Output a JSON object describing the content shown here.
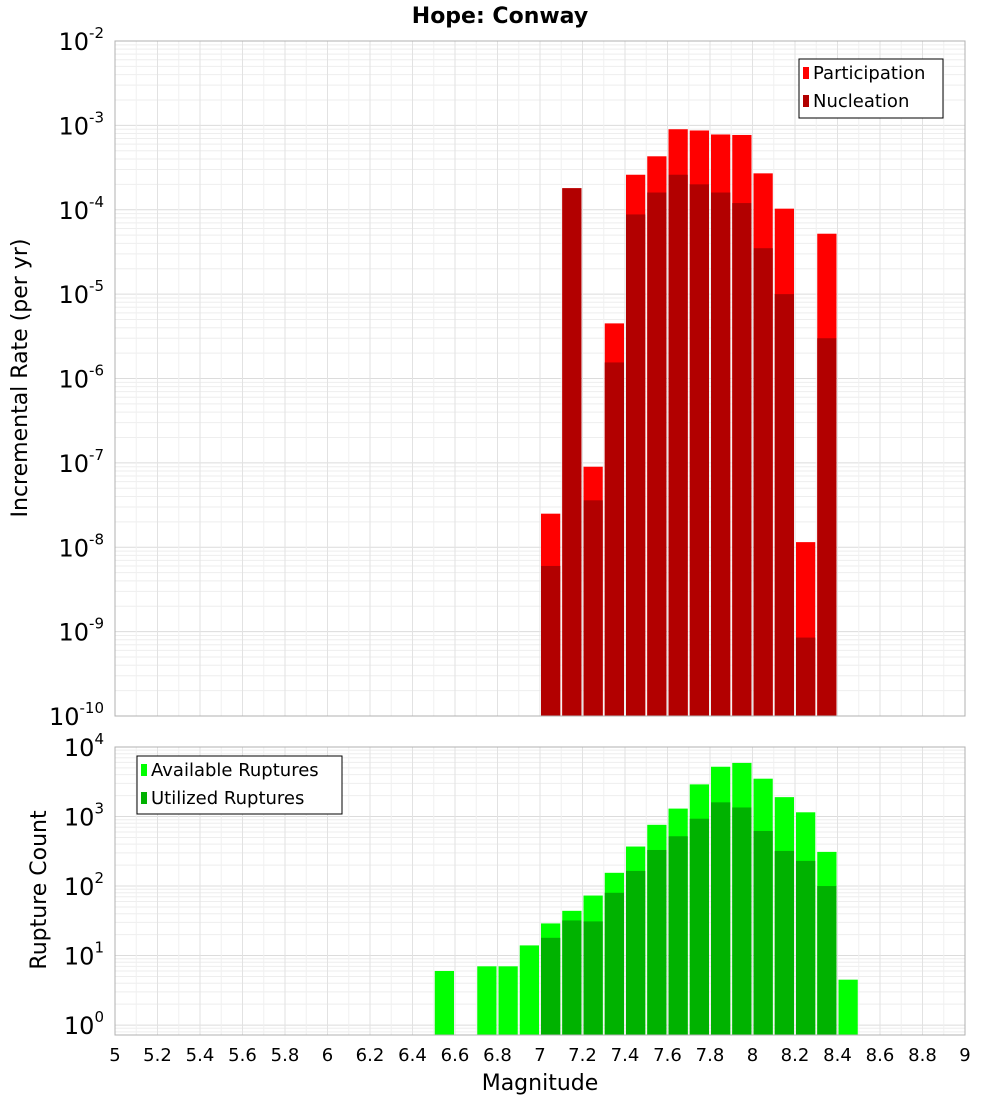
{
  "title": "Hope: Conway",
  "chart_data": [
    {
      "type": "bar",
      "ylabel": "Incremental Rate (per yr)",
      "yscale": "log",
      "ylim": [
        1e-10,
        0.01
      ],
      "xlim": [
        5,
        9
      ],
      "bar_width": 0.1,
      "ytick_exponents": [
        "-10",
        "-9",
        "-8",
        "-7",
        "-6",
        "-5",
        "-4",
        "-3",
        "-2"
      ],
      "legend": {
        "position": "top-right",
        "entries": [
          "Participation",
          "Nucleation"
        ]
      },
      "series": [
        {
          "name": "Participation",
          "color": "#ff0000",
          "x": [
            7.05,
            7.15,
            7.25,
            7.35,
            7.45,
            7.55,
            7.65,
            7.75,
            7.85,
            7.95,
            8.05,
            8.15,
            8.25,
            8.35
          ],
          "values": [
            2.5e-08,
            0.00018,
            9e-08,
            4.5e-06,
            0.00026,
            0.00043,
            0.0009,
            0.00087,
            0.00078,
            0.00077,
            0.00027,
            0.000103,
            1.15e-08,
            5.2e-05
          ]
        },
        {
          "name": "Nucleation",
          "color": "#b20000",
          "x": [
            7.05,
            7.15,
            7.25,
            7.35,
            7.45,
            7.55,
            7.65,
            7.75,
            7.85,
            7.95,
            8.05,
            8.15,
            8.25,
            8.35
          ],
          "values": [
            6e-09,
            0.00018,
            3.6e-08,
            1.55e-06,
            8.8e-05,
            0.00016,
            0.00026,
            0.0002,
            0.00016,
            0.00012,
            3.5e-05,
            1e-05,
            8.5e-10,
            3e-06
          ]
        }
      ]
    },
    {
      "type": "bar",
      "xlabel": "Magnitude",
      "ylabel": "Rupture Count",
      "yscale": "log",
      "ylim": [
        0.72,
        10000
      ],
      "xlim": [
        5,
        9
      ],
      "bar_width": 0.1,
      "xticks": [
        "5",
        "5.2",
        "5.4",
        "5.6",
        "5.8",
        "6",
        "6.2",
        "6.4",
        "6.6",
        "6.8",
        "7",
        "7.2",
        "7.4",
        "7.6",
        "7.8",
        "8",
        "8.2",
        "8.4",
        "8.6",
        "8.8",
        "9"
      ],
      "ytick_exponents": [
        "0",
        "1",
        "2",
        "3",
        "4"
      ],
      "legend": {
        "position": "top-left",
        "entries": [
          "Available Ruptures",
          "Utilized Ruptures"
        ]
      },
      "series": [
        {
          "name": "Available Ruptures",
          "color": "#00ff00",
          "x": [
            6.55,
            6.75,
            6.85,
            6.95,
            7.05,
            7.15,
            7.25,
            7.35,
            7.45,
            7.55,
            7.65,
            7.75,
            7.85,
            7.95,
            8.05,
            8.15,
            8.25,
            8.35,
            8.45
          ],
          "values": [
            6,
            7,
            7,
            14,
            29,
            44,
            73,
            155,
            370,
            760,
            1300,
            2900,
            5200,
            5900,
            3500,
            1900,
            1150,
            310,
            4.5
          ]
        },
        {
          "name": "Utilized Ruptures",
          "color": "#00b200",
          "x": [
            7.05,
            7.15,
            7.25,
            7.35,
            7.45,
            7.55,
            7.65,
            7.75,
            7.85,
            7.95,
            8.05,
            8.15,
            8.25,
            8.35
          ],
          "values": [
            18,
            32,
            31,
            80,
            165,
            330,
            520,
            930,
            1600,
            1350,
            620,
            320,
            230,
            100
          ]
        }
      ]
    }
  ]
}
